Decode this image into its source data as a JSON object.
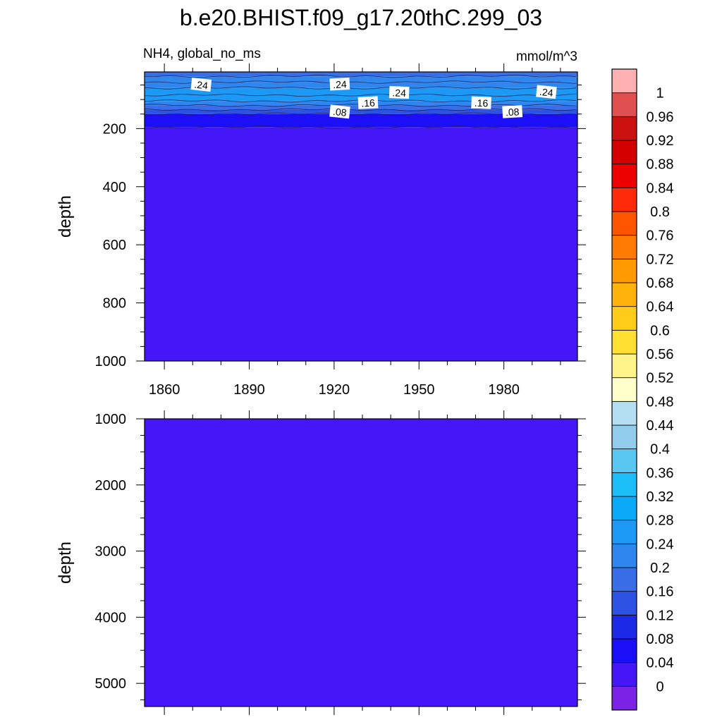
{
  "title": "b.e20.BHIST.f09_g17.20thC.299_03",
  "variable_label": "NH4, global_no_ms",
  "units_label": "mmol/m^3",
  "colorbar": {
    "labels": [
      "0",
      "0.04",
      "0.08",
      "0.12",
      "0.16",
      "0.2",
      "0.24",
      "0.28",
      "0.32",
      "0.36",
      "0.4",
      "0.44",
      "0.48",
      "0.52",
      "0.56",
      "0.6",
      "0.64",
      "0.68",
      "0.72",
      "0.76",
      "0.8",
      "0.84",
      "0.88",
      "0.92",
      "0.96",
      "1"
    ],
    "colors": [
      "#7a22e6",
      "#4516f7",
      "#1a0ff7",
      "#1c2ae8",
      "#2d52e4",
      "#3a6ee8",
      "#2f86ee",
      "#1c99f4",
      "#0aaaf8",
      "#1cbef8",
      "#5ac6f2",
      "#92cdee",
      "#b4def2",
      "#ffffcc",
      "#fff48a",
      "#ffe033",
      "#ffcc1a",
      "#ffb30a",
      "#ff9900",
      "#ff7a00",
      "#ff5500",
      "#ff2a0a",
      "#ee0000",
      "#d40000",
      "#cc1111",
      "#e05050",
      "#ffb0b0"
    ]
  },
  "chart_data": [
    {
      "type": "heatmap",
      "name": "upper",
      "xlabel": "",
      "ylabel": "depth",
      "x_ticks": [
        "1860",
        "1890",
        "1920",
        "1950",
        "1980"
      ],
      "y_ticks": [
        "200",
        "400",
        "600",
        "800",
        "1000"
      ],
      "xlim": [
        1853,
        2006
      ],
      "ylim": [
        1000,
        5
      ],
      "layers": [
        {
          "depth_from": 5,
          "depth_to": 20,
          "value": 0.16
        },
        {
          "depth_from": 20,
          "depth_to": 40,
          "value": 0.2
        },
        {
          "depth_from": 40,
          "depth_to": 60,
          "value": 0.22
        },
        {
          "depth_from": 60,
          "depth_to": 85,
          "value": 0.26
        },
        {
          "depth_from": 85,
          "depth_to": 105,
          "value": 0.24
        },
        {
          "depth_from": 105,
          "depth_to": 120,
          "value": 0.2
        },
        {
          "depth_from": 120,
          "depth_to": 135,
          "value": 0.16
        },
        {
          "depth_from": 135,
          "depth_to": 150,
          "value": 0.12
        },
        {
          "depth_from": 150,
          "depth_to": 195,
          "value": 0.06
        },
        {
          "depth_from": 195,
          "depth_to": 1000,
          "value": 0.02
        }
      ],
      "contour_labels": [
        {
          "text": ".24",
          "year": 1873,
          "depth": 50
        },
        {
          "text": ".24",
          "year": 1922,
          "depth": 48
        },
        {
          "text": ".24",
          "year": 1943,
          "depth": 77
        },
        {
          "text": ".24",
          "year": 1995,
          "depth": 75
        },
        {
          "text": ".16",
          "year": 1932,
          "depth": 112
        },
        {
          "text": ".16",
          "year": 1972,
          "depth": 112
        },
        {
          "text": ".08",
          "year": 1922,
          "depth": 143
        },
        {
          "text": ".08",
          "year": 1983,
          "depth": 143
        }
      ]
    },
    {
      "type": "heatmap",
      "name": "lower",
      "xlabel": "",
      "ylabel": "depth",
      "y_ticks": [
        "1000",
        "2000",
        "3000",
        "4000",
        "5000"
      ],
      "xlim": [
        1853,
        2006
      ],
      "ylim": [
        5350,
        1000
      ],
      "layers": [
        {
          "depth_from": 1000,
          "depth_to": 5350,
          "value": 0.02
        }
      ]
    }
  ]
}
